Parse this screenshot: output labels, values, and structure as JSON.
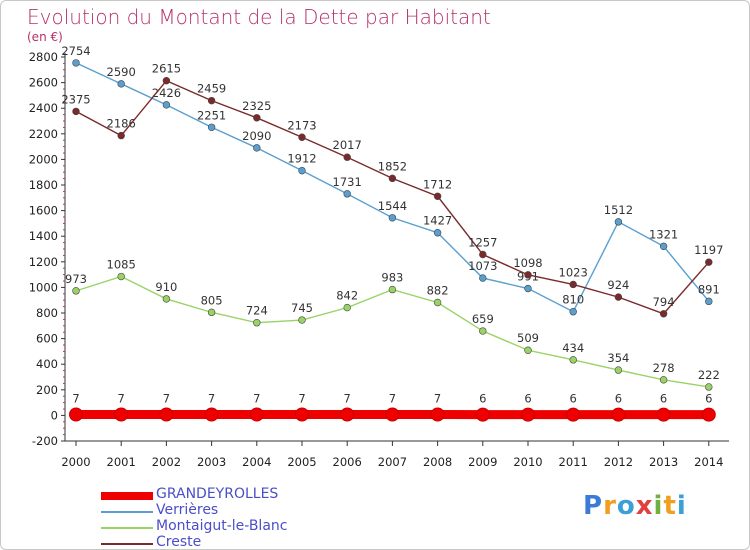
{
  "title": "Evolution du Montant de la Dette par Habitant",
  "unit_label": "(en €)",
  "logo": {
    "text": "Proxiti",
    "letters": [
      {
        "ch": "P",
        "color": "#3a7bd5"
      },
      {
        "ch": "r",
        "color": "#f0a020"
      },
      {
        "ch": "o",
        "color": "#3aa0d5"
      },
      {
        "ch": "x",
        "color": "#e04040"
      },
      {
        "ch": "i",
        "color": "#70b040"
      },
      {
        "ch": "t",
        "color": "#f0a020"
      },
      {
        "ch": "i",
        "color": "#3aa0d5"
      }
    ]
  },
  "chart_data": {
    "type": "line",
    "title": "Evolution du Montant de la Dette par Habitant",
    "ylabel": "(en €)",
    "x": [
      "2000",
      "2001",
      "2002",
      "2003",
      "2004",
      "2005",
      "2006",
      "2007",
      "2008",
      "2009",
      "2010",
      "2011",
      "2012",
      "2013",
      "2014"
    ],
    "ylim": [
      -200,
      2800
    ],
    "yticks": [
      -200,
      0,
      200,
      400,
      600,
      800,
      1000,
      1200,
      1400,
      1600,
      1800,
      2000,
      2200,
      2400,
      2600,
      2800
    ],
    "grid": false,
    "legend_position": "bottom-left",
    "series": [
      {
        "name": "GRANDEYROLLES",
        "color": "#ee0000",
        "values": [
          7,
          7,
          7,
          7,
          7,
          7,
          7,
          7,
          7,
          6,
          6,
          6,
          6,
          6,
          6
        ],
        "labels": [
          "7",
          "7",
          "7",
          "7",
          "7",
          "7",
          "7",
          "7",
          "7",
          "6",
          "6",
          "6",
          "6",
          "6",
          "6"
        ]
      },
      {
        "name": "Verrières",
        "color": "#5a9fd0",
        "values": [
          2754,
          2590,
          2426,
          2251,
          2090,
          1912,
          1731,
          1544,
          1427,
          1073,
          991,
          810,
          1512,
          1321,
          891
        ],
        "labels": [
          "2754",
          "2590",
          "2426",
          "2251",
          "2090",
          "1912",
          "1731",
          "1544",
          "1427",
          "1073",
          "991",
          "810",
          "1512",
          "1321",
          "891"
        ]
      },
      {
        "name": "Montaigut-le-Blanc",
        "color": "#99d366",
        "values": [
          973,
          1085,
          910,
          805,
          724,
          745,
          842,
          983,
          882,
          659,
          509,
          434,
          354,
          278,
          222
        ],
        "labels": [
          "973",
          "1085",
          "910",
          "805",
          "724",
          "745",
          "842",
          "983",
          "882",
          "659",
          "509",
          "434",
          "354",
          "278",
          "222"
        ]
      },
      {
        "name": "Creste",
        "color": "#7a2a2a",
        "values": [
          2375,
          2186,
          2615,
          2459,
          2325,
          2173,
          2017,
          1852,
          1712,
          1257,
          1098,
          1023,
          924,
          794,
          1197
        ],
        "labels": [
          "2375",
          "2186",
          "2615",
          "2459",
          "2325",
          "2173",
          "2017",
          "1852",
          "1712",
          "1257",
          "1098",
          "1023",
          "924",
          "794",
          "1197"
        ]
      }
    ]
  }
}
